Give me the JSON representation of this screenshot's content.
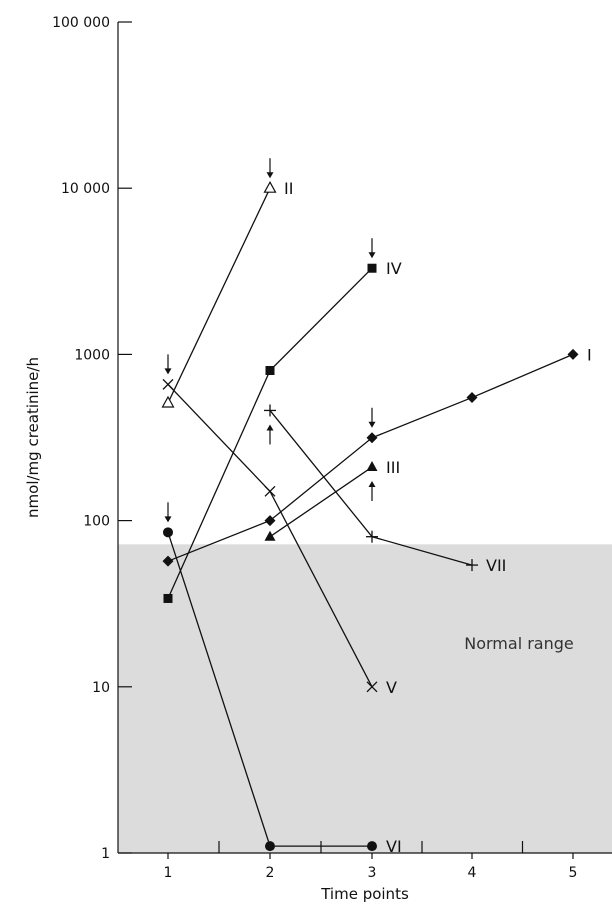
{
  "chart_data": {
    "type": "line",
    "xlabel": "Time points",
    "ylabel": "nmol/mg creatinine/h",
    "yscale": "log",
    "ylim": [
      1,
      100000
    ],
    "xlim": [
      0.5,
      5.5
    ],
    "x_ticks": [
      1,
      2,
      3,
      4,
      5
    ],
    "y_ticks": [
      {
        "value": 1,
        "label": "1"
      },
      {
        "value": 10,
        "label": "10"
      },
      {
        "value": 100,
        "label": "100"
      },
      {
        "value": 1000,
        "label": "1000"
      },
      {
        "value": 10000,
        "label": "10 000"
      },
      {
        "value": 100000,
        "label": "100 000"
      }
    ],
    "normal_range": {
      "label": "Normal range",
      "ymin": 1,
      "ymax": 72,
      "color": "#dcdcdc"
    },
    "series": [
      {
        "name": "I",
        "marker": "diamond",
        "points": [
          [
            1,
            57
          ],
          [
            2,
            100
          ],
          [
            3,
            315
          ],
          [
            4,
            550
          ],
          [
            5,
            1000
          ]
        ]
      },
      {
        "name": "II",
        "marker": "triangle-open",
        "points": [
          [
            1,
            510
          ],
          [
            2,
            10000
          ]
        ]
      },
      {
        "name": "III",
        "marker": "triangle",
        "points": [
          [
            2,
            80
          ],
          [
            3,
            210
          ]
        ]
      },
      {
        "name": "IV",
        "marker": "square",
        "points": [
          [
            1,
            34
          ],
          [
            2,
            800
          ],
          [
            3,
            3300
          ]
        ]
      },
      {
        "name": "V",
        "marker": "x",
        "points": [
          [
            1,
            660
          ],
          [
            2,
            150
          ],
          [
            3,
            10
          ]
        ]
      },
      {
        "name": "VI",
        "marker": "circle",
        "points": [
          [
            1,
            85
          ],
          [
            2,
            1.1
          ],
          [
            3,
            1.1
          ]
        ]
      },
      {
        "name": "VII",
        "marker": "plus",
        "points": [
          [
            2,
            460
          ],
          [
            3,
            80
          ],
          [
            4,
            54
          ]
        ]
      }
    ],
    "arrows": [
      {
        "x": 1,
        "y": 660,
        "direction": "down"
      },
      {
        "x": 1,
        "y": 85,
        "direction": "down"
      },
      {
        "x": 2,
        "y": 10000,
        "direction": "down"
      },
      {
        "x": 2,
        "y": 460,
        "direction": "up"
      },
      {
        "x": 3,
        "y": 3300,
        "direction": "down"
      },
      {
        "x": 3,
        "y": 315,
        "direction": "down"
      },
      {
        "x": 3,
        "y": 210,
        "direction": "up"
      }
    ]
  }
}
